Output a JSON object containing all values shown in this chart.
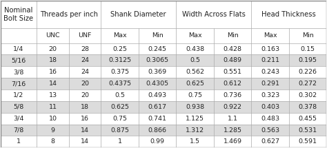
{
  "col_groups": [
    {
      "label": "Nominal\nBolt Size",
      "span": 1
    },
    {
      "label": "Threads per inch",
      "span": 2
    },
    {
      "label": "Shank Diameter",
      "span": 2
    },
    {
      "label": "Width Across Flats",
      "span": 2
    },
    {
      "label": "Head Thickness",
      "span": 2
    }
  ],
  "sub_headers": [
    "",
    "UNC",
    "UNF",
    "Max",
    "Min",
    "Max",
    "Min",
    "Max",
    "Min"
  ],
  "rows": [
    [
      "1/4",
      "20",
      "28",
      "0.25",
      "0.245",
      "0.438",
      "0.428",
      "0.163",
      "0.15"
    ],
    [
      "5/16",
      "18",
      "24",
      "0.3125",
      "0.3065",
      "0.5",
      "0.489",
      "0.211",
      "0.195"
    ],
    [
      "3/8",
      "16",
      "24",
      "0.375",
      "0.369",
      "0.562",
      "0.551",
      "0.243",
      "0.226"
    ],
    [
      "7/16",
      "14",
      "20",
      "0.4375",
      "0.4305",
      "0.625",
      "0.612",
      "0.291",
      "0.272"
    ],
    [
      "1/2",
      "13",
      "20",
      "0.5",
      "0.493",
      "0.75",
      "0.736",
      "0.323",
      "0.302"
    ],
    [
      "5/8",
      "11",
      "18",
      "0.625",
      "0.617",
      "0.938",
      "0.922",
      "0.403",
      "0.378"
    ],
    [
      "3/4",
      "10",
      "16",
      "0.75",
      "0.741",
      "1.125",
      "1.1",
      "0.483",
      "0.455"
    ],
    [
      "7/8",
      "9",
      "14",
      "0.875",
      "0.866",
      "1.312",
      "1.285",
      "0.563",
      "0.531"
    ],
    [
      "1",
      "8",
      "14",
      "1",
      "0.99",
      "1.5",
      "1.469",
      "0.627",
      "0.591"
    ]
  ],
  "bg_color": "#f0f0f0",
  "header_bg": "#ffffff",
  "row_even_bg": "#ffffff",
  "row_odd_bg": "#dcdcdc",
  "line_color": "#aaaaaa",
  "text_color": "#222222",
  "font_size": 6.8,
  "header_font_size": 7.2
}
